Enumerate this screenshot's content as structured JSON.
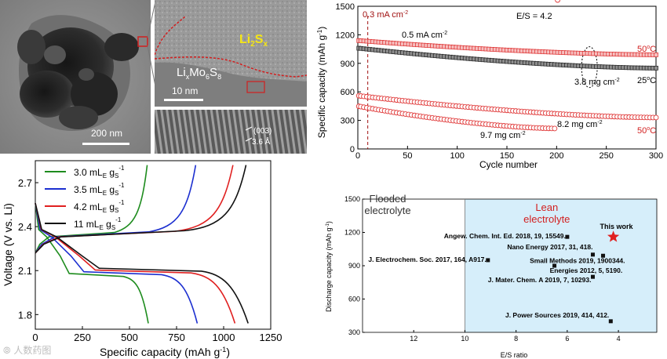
{
  "figure": {
    "tem": {
      "scale_main": "200 nm",
      "scale_inset": "10 nm",
      "label_li2sx_base": "Li",
      "label_li2sx_sub": "2",
      "label_li2sx_s": "S",
      "label_li2sx_subx": "x",
      "label_limo_li": "Li",
      "label_limo_x": "x",
      "label_limo_mo": "Mo",
      "label_limo_6": "6",
      "label_limo_s": "S",
      "label_limo_8": "8",
      "lattice_plane": "(003)",
      "lattice_spacing": "3.6 Å",
      "colors": {
        "li2sx": "#f5e614",
        "outline": "#d21f1f"
      }
    },
    "cycling": {
      "ylabel": "Specific capacity (mAh g",
      "xlabel": "Cycle number",
      "rate_first": "0.3 mA cm",
      "rate_main": "0.5 mA cm",
      "es_ratio": "E/S = 4.2",
      "label_38": "3.8 mg cm",
      "label_82": "8.2 mg cm",
      "label_97": "9.7 mg cm",
      "temp_50_top": "50",
      "temp_25": "25",
      "temp_50_bottom": "50",
      "chart_data": {
        "type": "scatter",
        "x_range": [
          0,
          300
        ],
        "y_range": [
          0,
          1500
        ],
        "x_ticks": [
          0,
          50,
          100,
          150,
          200,
          250,
          300
        ],
        "y_ticks": [
          0,
          300,
          600,
          900,
          1200,
          1500
        ],
        "series": [
          {
            "name": "3.8 mg cm-2, 50°C",
            "start": 1140,
            "end": 990,
            "cycles": 300,
            "color": "#e03a3a",
            "fill": "#f6c0c0"
          },
          {
            "name": "3.8 mg cm-2, 25°C",
            "start": 1060,
            "end": 850,
            "cycles": 300,
            "color": "#2b2b2b",
            "fill": "#8f8f8f"
          },
          {
            "name": "8.2 mg cm-2, 50°C",
            "start": 560,
            "end": 330,
            "cycles": 300,
            "color": "#e03a3a",
            "fill": "#ffffff"
          },
          {
            "name": "9.7 mg cm-2",
            "start": 450,
            "end": 215,
            "cycles": 200,
            "color": "#e03a3a",
            "fill": "#ffffff"
          }
        ]
      }
    },
    "voltage": {
      "ylabel": "Voltage (V vs. Li)",
      "xlabel": "Specific capacity (mAh g",
      "legend": [
        {
          "value": "3.0",
          "color": "#1e8c1e"
        },
        {
          "value": "3.5",
          "color": "#1c2fd0"
        },
        {
          "value": "4.2",
          "color": "#e02020"
        },
        {
          "value": "11",
          "color": "#111111"
        }
      ],
      "legend_unit_m": "mL",
      "legend_unit_e": "E",
      "legend_unit_g": "g",
      "legend_unit_s": "S",
      "legend_unit_exp": "-1",
      "chart_data": {
        "type": "line",
        "x_range": [
          0,
          1250
        ],
        "y_range": [
          1.7,
          2.85
        ],
        "x_ticks": [
          0,
          250,
          500,
          750,
          1000,
          1250
        ],
        "y_ticks": [
          1.8,
          2.1,
          2.4,
          2.7
        ],
        "series": [
          {
            "name": "3.0 mL/g",
            "color": "#1e8c1e",
            "capacity": 600
          },
          {
            "name": "3.5 mL/g",
            "color": "#1c2fd0",
            "capacity": 860
          },
          {
            "name": "4.2 mL/g",
            "color": "#e02020",
            "capacity": 1060
          },
          {
            "name": "11 mL/g",
            "color": "#111111",
            "capacity": 1130
          }
        ]
      }
    },
    "comparison": {
      "flooded": "Flooded electrolyte",
      "lean": "Lean electrolyte",
      "ylabel": "Discharge capacity (mAh g",
      "xlabel": "E/S ratio",
      "chart_data": {
        "type": "scatter",
        "x_range": [
          14,
          2.5
        ],
        "y_range": [
          300,
          1500
        ],
        "x_ticks": [
          12,
          10,
          8,
          6,
          4
        ],
        "y_ticks": [
          300,
          600,
          900,
          1200,
          1500
        ],
        "points": [
          {
            "label": "This work",
            "x": 4.2,
            "y": 1160,
            "star": true
          },
          {
            "label": "Angew. Chem. Int. Ed. 2018, 19, 15549.",
            "x": 6.0,
            "y": 1160
          },
          {
            "label": "Nano Energy 2017, 31, 418.",
            "x": 5.0,
            "y": 1000
          },
          {
            "label": "Small Methods 2019, 1900344.",
            "x": 4.6,
            "y": 990
          },
          {
            "label": "J. Electrochem. Soc. 2017, 164, A917.",
            "x": 9.1,
            "y": 950
          },
          {
            "label": "Energies 2012, 5, 5190.",
            "x": 6.5,
            "y": 900
          },
          {
            "label": "J. Mater. Chem. A 2019, 7, 10293.",
            "x": 5.0,
            "y": 800
          },
          {
            "label": "J. Power Sources 2019, 414, 412.",
            "x": 4.3,
            "y": 400
          }
        ]
      }
    },
    "watermark": "⦾ 人数药图"
  }
}
